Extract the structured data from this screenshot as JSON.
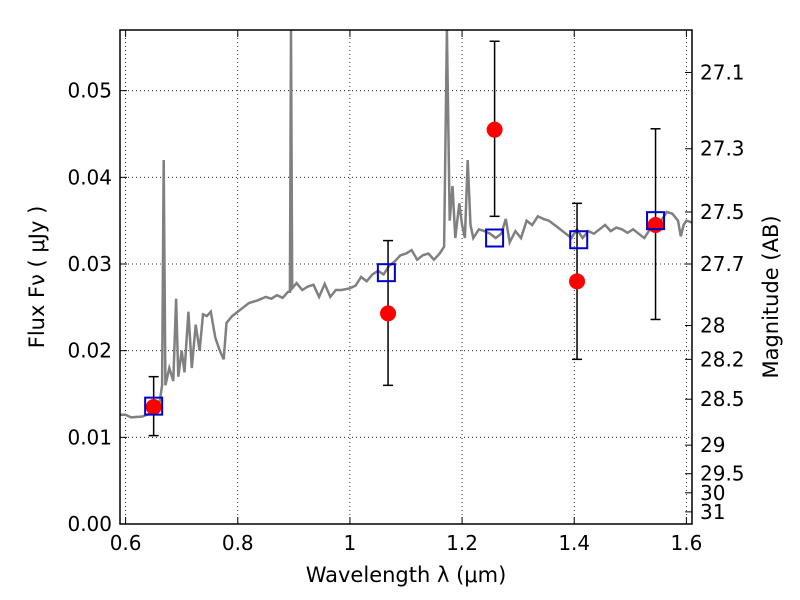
{
  "chart_data": {
    "type": "line",
    "xlabel": "Wavelength  λ (μm)",
    "ylabel": "Flux  Fν  ( μJy )",
    "y2label": "Magnitude (AB)",
    "xlim": [
      0.59,
      1.61
    ],
    "ylim": [
      0.0,
      0.057
    ],
    "grid": true,
    "grid_style": "dotted",
    "x_ticks": [
      {
        "value": 0.6,
        "label": "0.6"
      },
      {
        "value": 0.8,
        "label": "0.8"
      },
      {
        "value": 1.0,
        "label": "1"
      },
      {
        "value": 1.2,
        "label": "1.2"
      },
      {
        "value": 1.4,
        "label": "1.4"
      },
      {
        "value": 1.6,
        "label": "1.6"
      }
    ],
    "y_ticks": [
      {
        "value": 0.0,
        "label": "0.00"
      },
      {
        "value": 0.01,
        "label": "0.01"
      },
      {
        "value": 0.02,
        "label": "0.02"
      },
      {
        "value": 0.03,
        "label": "0.03"
      },
      {
        "value": 0.04,
        "label": "0.04"
      },
      {
        "value": 0.05,
        "label": "0.05"
      }
    ],
    "y2_ticks": [
      {
        "flux": 0.0521,
        "label": "27.1"
      },
      {
        "flux": 0.0433,
        "label": "27.3"
      },
      {
        "flux": 0.036,
        "label": "27.5"
      },
      {
        "flux": 0.03,
        "label": "27.7"
      },
      {
        "flux": 0.0229,
        "label": "28"
      },
      {
        "flux": 0.019,
        "label": "28.2"
      },
      {
        "flux": 0.0144,
        "label": "28.5"
      },
      {
        "flux": 0.0091,
        "label": "29"
      },
      {
        "flux": 0.0058,
        "label": "29.5"
      },
      {
        "flux": 0.0036,
        "label": "30"
      },
      {
        "flux": 0.0014,
        "label": "31"
      }
    ],
    "series": [
      {
        "kind": "model_spectrum",
        "color": "#808080",
        "points": [
          [
            0.59,
            0.0126
          ],
          [
            0.6,
            0.0126
          ],
          [
            0.61,
            0.0123
          ],
          [
            0.63,
            0.0124
          ],
          [
            0.645,
            0.0128
          ],
          [
            0.655,
            0.0132
          ],
          [
            0.66,
            0.0138
          ],
          [
            0.665,
            0.016
          ],
          [
            0.668,
            0.042
          ],
          [
            0.671,
            0.016
          ],
          [
            0.678,
            0.018
          ],
          [
            0.685,
            0.0165
          ],
          [
            0.69,
            0.026
          ],
          [
            0.694,
            0.017
          ],
          [
            0.7,
            0.02
          ],
          [
            0.705,
            0.0175
          ],
          [
            0.712,
            0.0245
          ],
          [
            0.718,
            0.018
          ],
          [
            0.725,
            0.023
          ],
          [
            0.732,
            0.02
          ],
          [
            0.738,
            0.0242
          ],
          [
            0.745,
            0.024
          ],
          [
            0.752,
            0.0245
          ],
          [
            0.76,
            0.0215
          ],
          [
            0.768,
            0.02
          ],
          [
            0.775,
            0.019
          ],
          [
            0.78,
            0.0232
          ],
          [
            0.79,
            0.024
          ],
          [
            0.8,
            0.0245
          ],
          [
            0.81,
            0.025
          ],
          [
            0.82,
            0.0255
          ],
          [
            0.835,
            0.0258
          ],
          [
            0.85,
            0.0262
          ],
          [
            0.86,
            0.026
          ],
          [
            0.87,
            0.0264
          ],
          [
            0.88,
            0.0261
          ],
          [
            0.89,
            0.0268
          ],
          [
            0.893,
            0.0268
          ],
          [
            0.895,
            0.057
          ],
          [
            0.897,
            0.0272
          ],
          [
            0.905,
            0.0278
          ],
          [
            0.915,
            0.027
          ],
          [
            0.925,
            0.0274
          ],
          [
            0.935,
            0.0276
          ],
          [
            0.945,
            0.0262
          ],
          [
            0.955,
            0.0277
          ],
          [
            0.965,
            0.0262
          ],
          [
            0.975,
            0.027
          ],
          [
            0.985,
            0.027
          ],
          [
            1.0,
            0.0272
          ],
          [
            1.01,
            0.0275
          ],
          [
            1.02,
            0.0285
          ],
          [
            1.03,
            0.028
          ],
          [
            1.04,
            0.0288
          ],
          [
            1.05,
            0.0292
          ],
          [
            1.06,
            0.0288
          ],
          [
            1.07,
            0.0298
          ],
          [
            1.08,
            0.0303
          ],
          [
            1.09,
            0.031
          ],
          [
            1.1,
            0.0312
          ],
          [
            1.11,
            0.0316
          ],
          [
            1.12,
            0.0305
          ],
          [
            1.13,
            0.031
          ],
          [
            1.14,
            0.0312
          ],
          [
            1.15,
            0.0305
          ],
          [
            1.16,
            0.0312
          ],
          [
            1.168,
            0.032
          ],
          [
            1.173,
            0.057
          ],
          [
            1.178,
            0.035
          ],
          [
            1.183,
            0.039
          ],
          [
            1.188,
            0.033
          ],
          [
            1.195,
            0.037
          ],
          [
            1.2,
            0.0345
          ],
          [
            1.205,
            0.033
          ],
          [
            1.21,
            0.042
          ],
          [
            1.215,
            0.0345
          ],
          [
            1.22,
            0.033
          ],
          [
            1.23,
            0.034
          ],
          [
            1.24,
            0.0338
          ],
          [
            1.25,
            0.0335
          ],
          [
            1.26,
            0.033
          ],
          [
            1.27,
            0.0335
          ],
          [
            1.278,
            0.0352
          ],
          [
            1.285,
            0.0325
          ],
          [
            1.295,
            0.0338
          ],
          [
            1.305,
            0.033
          ],
          [
            1.315,
            0.035
          ],
          [
            1.325,
            0.0345
          ],
          [
            1.335,
            0.0355
          ],
          [
            1.345,
            0.0352
          ],
          [
            1.355,
            0.035
          ],
          [
            1.365,
            0.0345
          ],
          [
            1.375,
            0.034
          ],
          [
            1.385,
            0.0335
          ],
          [
            1.395,
            0.033
          ],
          [
            1.405,
            0.034
          ],
          [
            1.415,
            0.033
          ],
          [
            1.425,
            0.0338
          ],
          [
            1.435,
            0.0335
          ],
          [
            1.445,
            0.034
          ],
          [
            1.455,
            0.0345
          ],
          [
            1.465,
            0.0338
          ],
          [
            1.475,
            0.0342
          ],
          [
            1.485,
            0.034
          ],
          [
            1.495,
            0.0336
          ],
          [
            1.505,
            0.034
          ],
          [
            1.515,
            0.0335
          ],
          [
            1.525,
            0.033
          ],
          [
            1.535,
            0.034
          ],
          [
            1.545,
            0.0345
          ],
          [
            1.555,
            0.035
          ],
          [
            1.565,
            0.036
          ],
          [
            1.575,
            0.0358
          ],
          [
            1.585,
            0.035
          ],
          [
            1.59,
            0.0332
          ],
          [
            1.595,
            0.0345
          ],
          [
            1.6,
            0.035
          ],
          [
            1.61,
            0.0348
          ]
        ]
      },
      {
        "kind": "observed_points",
        "color": "#ff0000",
        "points": [
          {
            "x": 0.65,
            "y": 0.0135,
            "yerr_low": 0.0102,
            "yerr_high": 0.017
          },
          {
            "x": 1.068,
            "y": 0.0243,
            "yerr_low": 0.016,
            "yerr_high": 0.0327
          },
          {
            "x": 1.258,
            "y": 0.0455,
            "yerr_low": 0.0355,
            "yerr_high": 0.0557
          },
          {
            "x": 1.405,
            "y": 0.028,
            "yerr_low": 0.019,
            "yerr_high": 0.037
          },
          {
            "x": 1.545,
            "y": 0.0345,
            "yerr_low": 0.0236,
            "yerr_high": 0.0456
          }
        ]
      },
      {
        "kind": "model_photometry",
        "color": "#0000cc",
        "points": [
          {
            "x": 0.65,
            "y": 0.0136
          },
          {
            "x": 1.065,
            "y": 0.029
          },
          {
            "x": 1.258,
            "y": 0.033
          },
          {
            "x": 1.408,
            "y": 0.0328
          },
          {
            "x": 1.545,
            "y": 0.035
          }
        ]
      }
    ]
  }
}
